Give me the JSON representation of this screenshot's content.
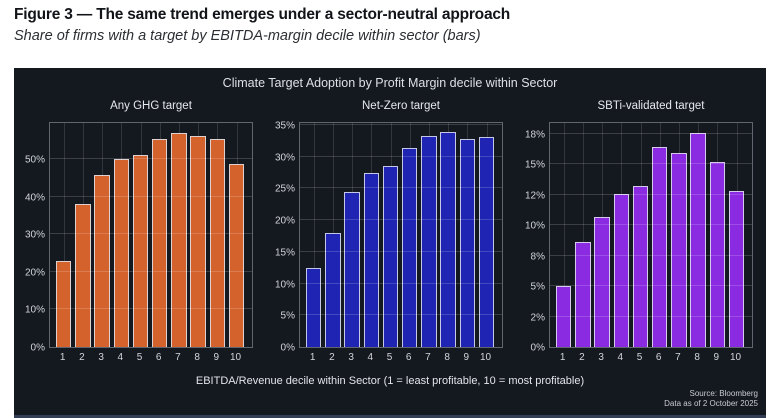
{
  "header": {
    "title": "Figure 3 — The same trend emerges under a sector-neutral approach",
    "subtitle": "Share of firms with a target by EBITDA-margin decile within sector (bars)"
  },
  "panel": {
    "title": "Climate Target Adoption by Profit Margin decile within Sector",
    "xlabel": "EBITDA/Revenue decile within Sector (1 = least profitable, 10 = most profitable)",
    "source_line1": "Source: Bloomberg",
    "source_line2": "Data as of 2 October 2025",
    "background": "#14181f"
  },
  "chart_data": [
    {
      "type": "bar",
      "title": "Any GHG target",
      "color": "#d4622d",
      "categories": [
        "1",
        "2",
        "3",
        "4",
        "5",
        "6",
        "7",
        "8",
        "9",
        "10"
      ],
      "values": [
        23,
        38,
        45.8,
        50.2,
        51.2,
        55.5,
        57,
        56.2,
        55.4,
        48.8
      ],
      "ylim": [
        0,
        60.2
      ],
      "yticks": [
        {
          "v": 0,
          "label": "0%"
        },
        {
          "v": 10,
          "label": "10%"
        },
        {
          "v": 20,
          "label": "20%"
        },
        {
          "v": 30,
          "label": "30%"
        },
        {
          "v": 40,
          "label": "40%"
        },
        {
          "v": 50,
          "label": "50%"
        }
      ],
      "grid": true,
      "legend": "none"
    },
    {
      "type": "bar",
      "title": "Net-Zero target",
      "color": "#1f25b2",
      "categories": [
        "1",
        "2",
        "3",
        "4",
        "5",
        "6",
        "7",
        "8",
        "9",
        "10"
      ],
      "values": [
        12.5,
        18,
        24.4,
        27.4,
        28.5,
        31.4,
        33.2,
        33.8,
        32.7,
        33.1
      ],
      "ylim": [
        0,
        35.6
      ],
      "yticks": [
        {
          "v": 0,
          "label": "0%"
        },
        {
          "v": 5,
          "label": "5%"
        },
        {
          "v": 10,
          "label": "10%"
        },
        {
          "v": 15,
          "label": "15%"
        },
        {
          "v": 20,
          "label": "20%"
        },
        {
          "v": 25,
          "label": "25%"
        },
        {
          "v": 30,
          "label": "30%"
        },
        {
          "v": 35,
          "label": "35%"
        }
      ],
      "grid": true,
      "legend": "none"
    },
    {
      "type": "bar",
      "title": "SBTi-validated target",
      "color": "#8a2be2",
      "categories": [
        "1",
        "2",
        "3",
        "4",
        "5",
        "6",
        "7",
        "8",
        "9",
        "10"
      ],
      "values": [
        5,
        8.6,
        10.7,
        12.6,
        13.2,
        16.4,
        15.9,
        17.6,
        15.2,
        12.8
      ],
      "ylim": [
        0,
        18.55
      ],
      "yticks": [
        {
          "v": 0,
          "label": "0%"
        },
        {
          "v": 2.5,
          "label": "2%"
        },
        {
          "v": 5,
          "label": "5%"
        },
        {
          "v": 7.5,
          "label": "8%"
        },
        {
          "v": 10,
          "label": "10%"
        },
        {
          "v": 12.5,
          "label": "12%"
        },
        {
          "v": 15,
          "label": "15%"
        },
        {
          "v": 17.5,
          "label": "18%"
        }
      ],
      "grid": true,
      "legend": "none"
    }
  ]
}
